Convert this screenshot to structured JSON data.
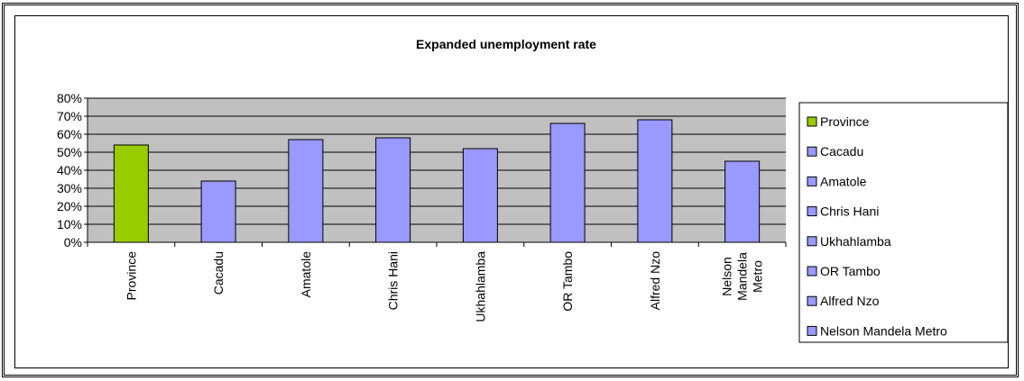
{
  "chart_data": {
    "type": "bar",
    "title": "Expanded unemployment rate",
    "categories": [
      "Province",
      "Cacadu",
      "Amatole",
      "Chris Hani",
      "Ukhahlamba",
      "OR Tambo",
      "Alfred Nzo",
      "Nelson Mandela Metro"
    ],
    "category_tick_lines": [
      [
        "Province"
      ],
      [
        "Cacadu"
      ],
      [
        "Amatole"
      ],
      [
        "Chris Hani"
      ],
      [
        "Ukhahlamba"
      ],
      [
        "OR Tambo"
      ],
      [
        "Alfred Nzo"
      ],
      [
        "Nelson",
        "Mandela",
        "Metro"
      ]
    ],
    "values": [
      54,
      34,
      57,
      58,
      52,
      66,
      68,
      45
    ],
    "unit": "%",
    "ylim": [
      0,
      80
    ],
    "yticks": [
      "0%",
      "10%",
      "20%",
      "30%",
      "40%",
      "50%",
      "60%",
      "70%",
      "80%"
    ],
    "xlabel": "",
    "ylabel": "",
    "grid": true,
    "legend_position": "right",
    "legend": [
      "Province",
      "Cacadu",
      "Amatole",
      "Chris Hani",
      "Ukhahlamba",
      "OR Tambo",
      "Alfred Nzo",
      "Nelson Mandela Metro"
    ],
    "colors": {
      "bars": [
        "#99cc00",
        "#9999ff",
        "#9999ff",
        "#9999ff",
        "#9999ff",
        "#9999ff",
        "#9999ff",
        "#9999ff"
      ],
      "plot_background": "#c0c0c0"
    }
  }
}
